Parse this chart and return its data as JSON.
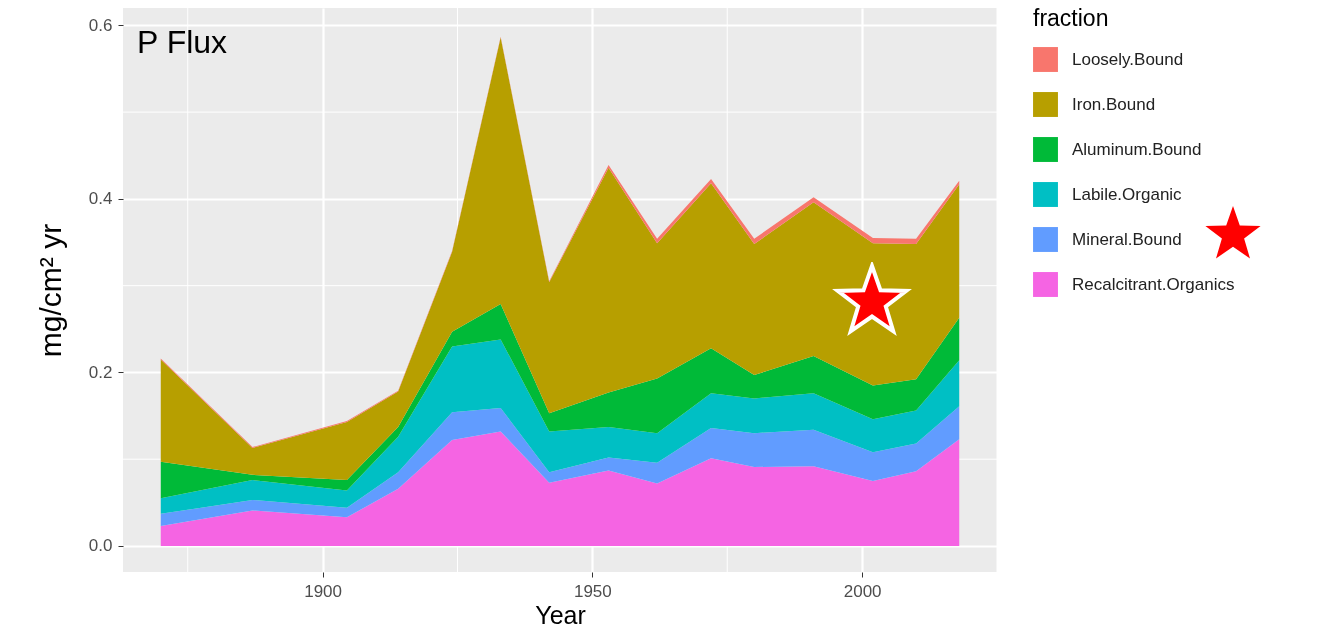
{
  "chart_data": {
    "type": "area",
    "title": "P Flux",
    "xlabel": "Year",
    "ylabel": "mg/cm² yr",
    "legend_title": "fraction",
    "stacked": true,
    "grid": true,
    "legend": "right",
    "x": [
      1870,
      1887,
      1904.5,
      1914,
      1924,
      1933,
      1942,
      1953,
      1962,
      1972,
      1980,
      1991,
      2002,
      2010,
      2018
    ],
    "xlim": [
      1863,
      2025
    ],
    "xticks": [
      1900,
      1950,
      2000
    ],
    "ylim": [
      -0.03,
      0.62
    ],
    "yticks": [
      {
        "value": 0,
        "label": "0.0"
      },
      0.2,
      0.4,
      0.6
    ],
    "series": [
      {
        "name": "Recalcitrant.Organics",
        "color": "#f564e3",
        "values": [
          0.023,
          0.041,
          0.033,
          0.066,
          0.122,
          0.132,
          0.073,
          0.087,
          0.072,
          0.101,
          0.091,
          0.092,
          0.075,
          0.086,
          0.123
        ]
      },
      {
        "name": "Mineral.Bound",
        "color": "#619cff",
        "values": [
          0.014,
          0.012,
          0.011,
          0.019,
          0.032,
          0.027,
          0.012,
          0.015,
          0.024,
          0.035,
          0.039,
          0.042,
          0.033,
          0.032,
          0.038
        ]
      },
      {
        "name": "Labile.Organic",
        "color": "#00bfc4",
        "values": [
          0.018,
          0.023,
          0.02,
          0.041,
          0.076,
          0.079,
          0.047,
          0.035,
          0.034,
          0.04,
          0.04,
          0.042,
          0.038,
          0.038,
          0.053
        ]
      },
      {
        "name": "Aluminum.Bound",
        "color": "#00ba38",
        "values": [
          0.042,
          0.006,
          0.012,
          0.011,
          0.017,
          0.041,
          0.021,
          0.04,
          0.063,
          0.052,
          0.027,
          0.043,
          0.039,
          0.036,
          0.049
        ]
      },
      {
        "name": "Iron.Bound",
        "color": "#b79f00",
        "values": [
          0.118,
          0.031,
          0.067,
          0.041,
          0.092,
          0.307,
          0.151,
          0.259,
          0.156,
          0.19,
          0.151,
          0.177,
          0.164,
          0.156,
          0.154
        ]
      },
      {
        "name": "Loosely.Bound",
        "color": "#f8766d",
        "values": [
          0.001,
          0.001,
          0.001,
          0.001,
          0.001,
          0.001,
          0.001,
          0.003,
          0.005,
          0.005,
          0.006,
          0.006,
          0.006,
          0.006,
          0.004
        ]
      }
    ]
  }
}
